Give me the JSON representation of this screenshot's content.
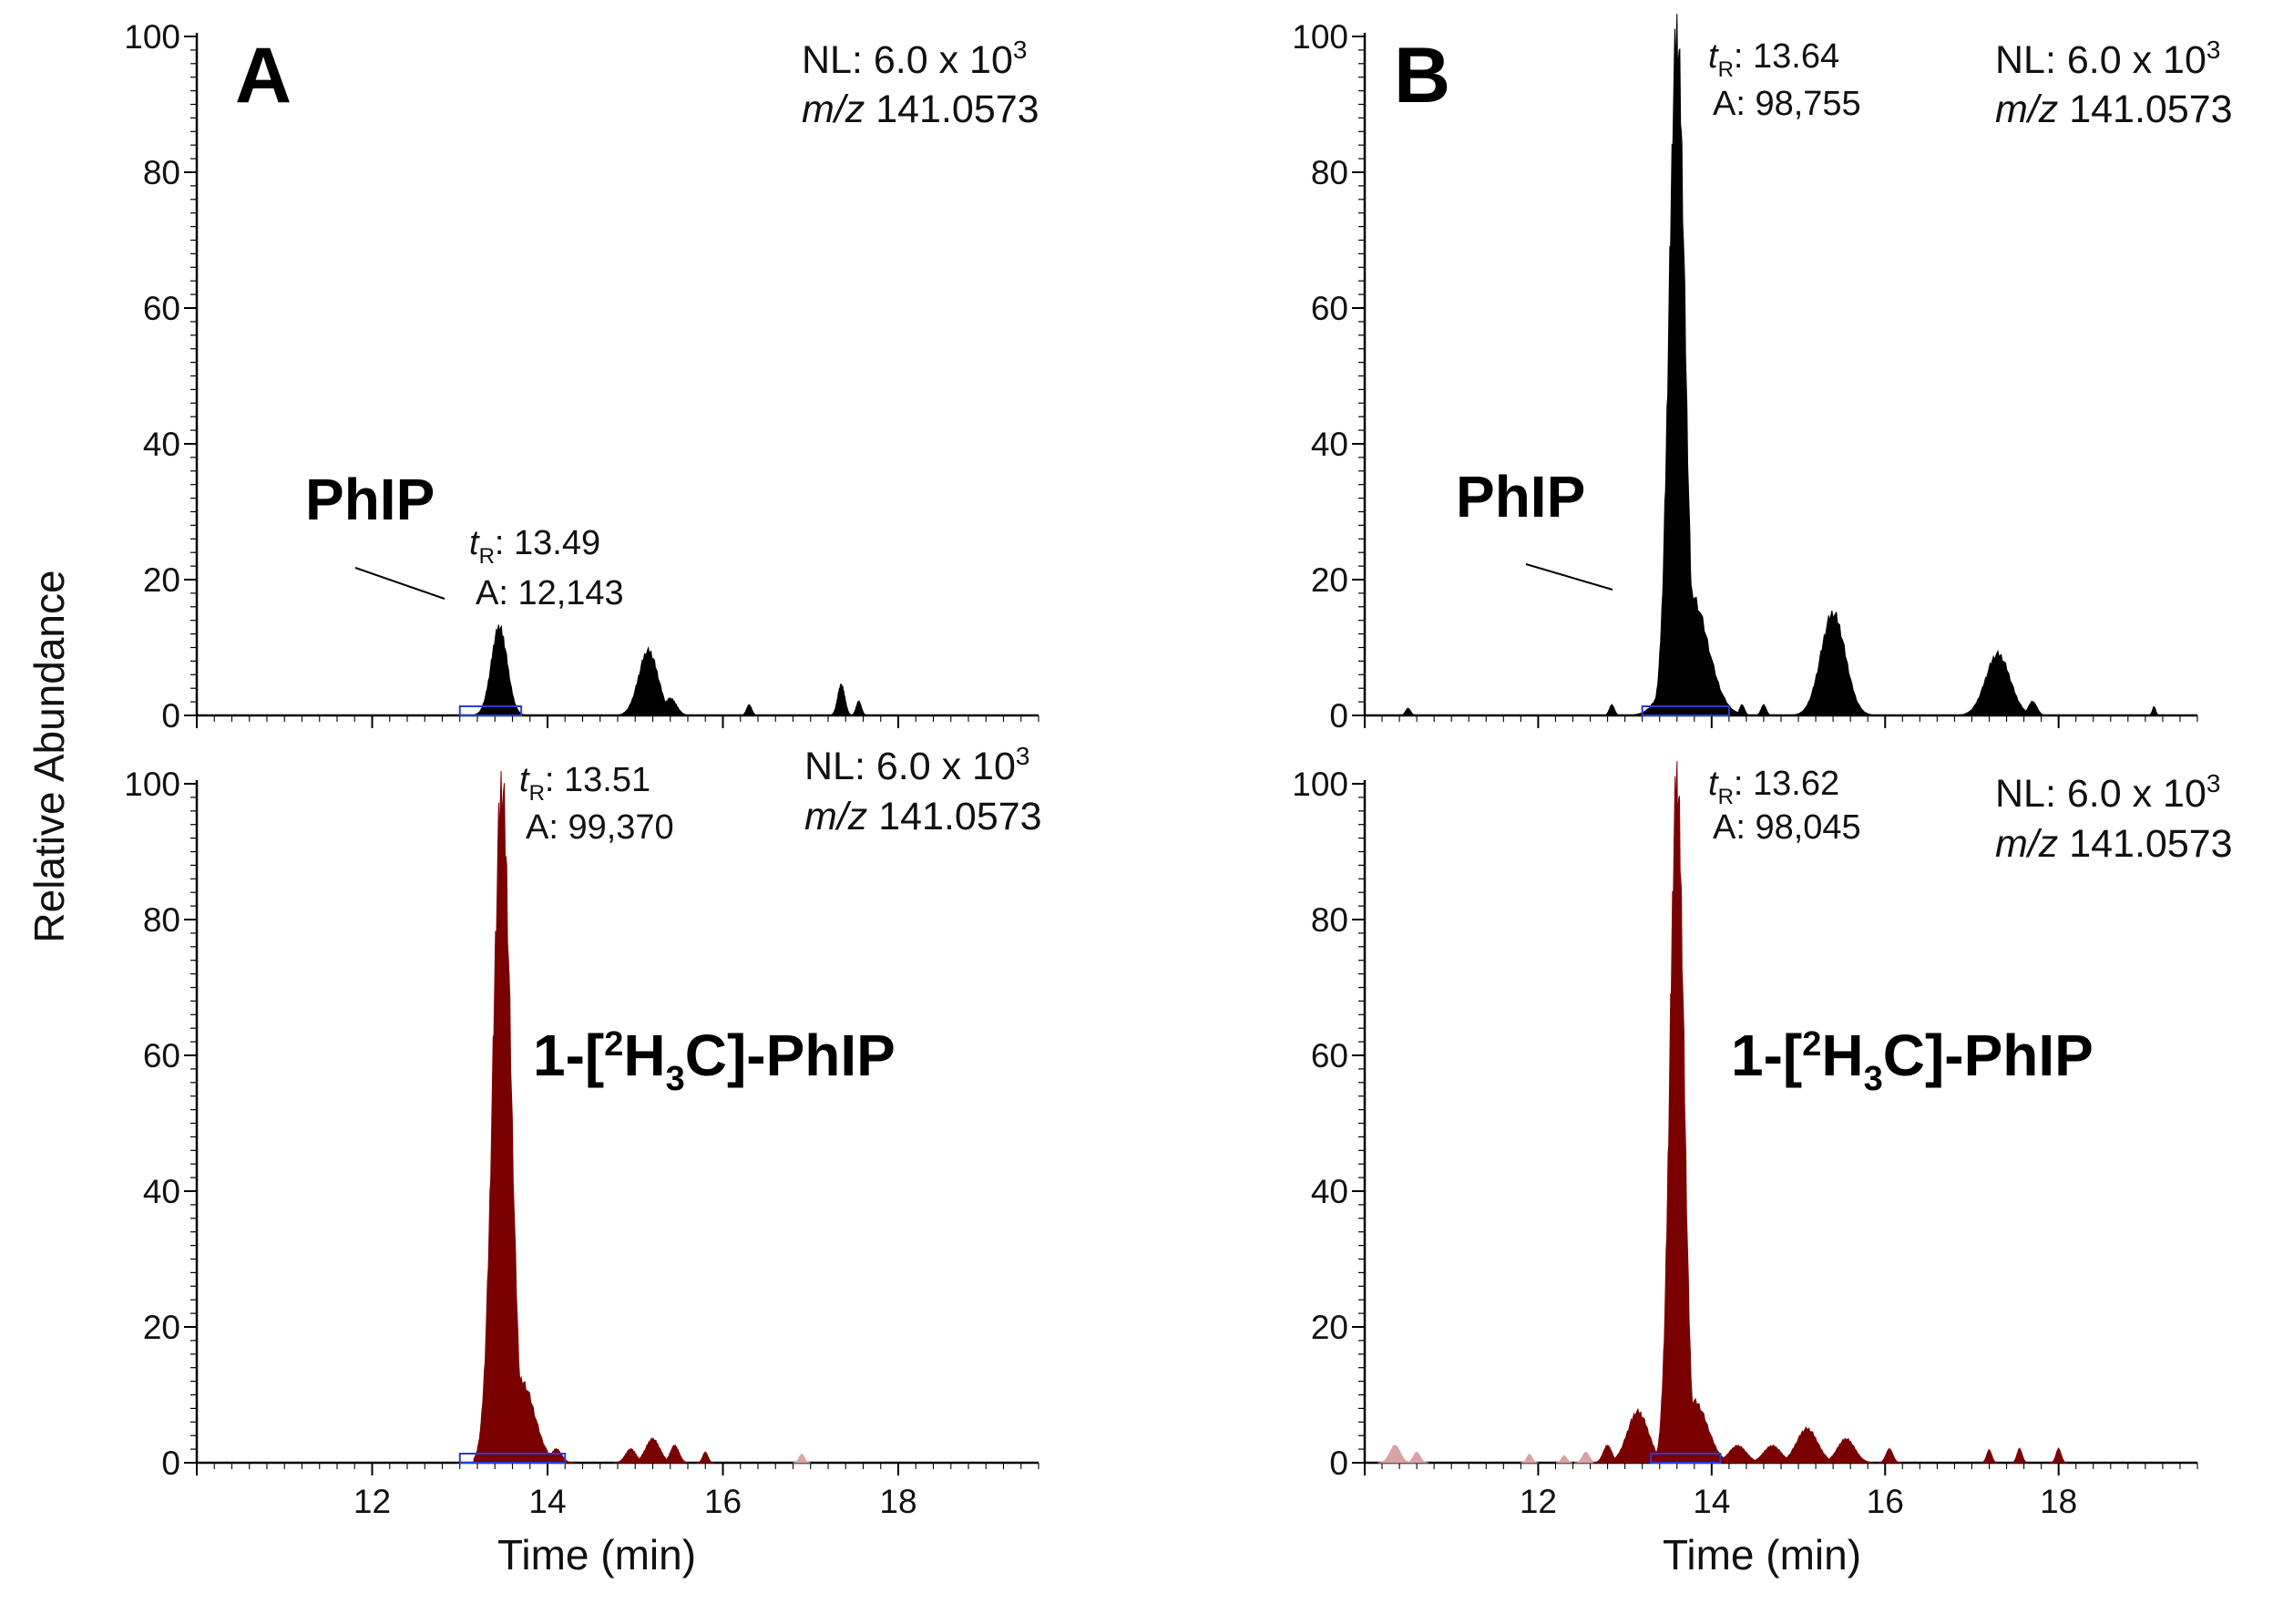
{
  "figure": {
    "ylabel": "Relative Abundance",
    "xlabel": "Time (min)",
    "xticks": [
      12,
      14,
      16,
      18
    ],
    "yticks": [
      0,
      20,
      40,
      60,
      80,
      100
    ],
    "colors": {
      "black_trace": "#000000",
      "red_trace": "#7a0000",
      "faint_red": "#d9a3a3",
      "baseline_marker": "#2b3bd6"
    }
  },
  "chart_data": [
    {
      "id": "A-top",
      "panel": "A",
      "type": "area",
      "color": "#000000",
      "title": "A",
      "nl_label": "NL: 6.0 x 10",
      "nl_exp": "3",
      "mz_italic": "m/z",
      "mz_value": "141.0573",
      "xlim": [
        10.0,
        19.6
      ],
      "ylim": [
        0,
        100
      ],
      "tr_t": "t",
      "tr_sub": "R",
      "tr_value": ": 13.49",
      "area_label": "A: 12,143",
      "compound": "PhIP",
      "baseline_window": [
        13.0,
        13.7
      ],
      "peaks": [
        {
          "rt": 13.45,
          "height": 13,
          "width": 0.09
        },
        {
          "rt": 15.15,
          "height": 9.5,
          "width": 0.11
        },
        {
          "rt": 15.4,
          "height": 2.5,
          "width": 0.07
        },
        {
          "rt": 16.3,
          "height": 1.5,
          "width": 0.03
        },
        {
          "rt": 17.35,
          "height": 4.5,
          "width": 0.04
        },
        {
          "rt": 17.55,
          "height": 2,
          "width": 0.03
        }
      ]
    },
    {
      "id": "A-bottom",
      "panel": "A",
      "type": "area",
      "color": "#7a0000",
      "nl_label": "NL: 6.0 x 10",
      "nl_exp": "3",
      "mz_italic": "m/z",
      "mz_value": "141.0573",
      "xlim": [
        10.0,
        19.6
      ],
      "ylim": [
        0,
        100
      ],
      "tr_t": "t",
      "tr_sub": "R",
      "tr_value": ": 13.51",
      "area_label": "A: 99,370",
      "compound_prefix": "1-[",
      "compound_sup": "2",
      "compound_h": "H",
      "compound_sub": "3",
      "compound_suffix": "C]-PhIP",
      "baseline_window": [
        13.0,
        14.2
      ],
      "peaks": [
        {
          "rt": 13.48,
          "height": 99,
          "width": 0.1
        },
        {
          "rt": 13.7,
          "height": 12,
          "width": 0.15
        },
        {
          "rt": 14.1,
          "height": 2,
          "width": 0.06
        },
        {
          "rt": 14.95,
          "height": 2,
          "width": 0.06
        },
        {
          "rt": 15.2,
          "height": 3.5,
          "width": 0.08
        },
        {
          "rt": 15.45,
          "height": 2.5,
          "width": 0.05
        },
        {
          "rt": 15.8,
          "height": 1.5,
          "width": 0.03
        }
      ],
      "faint_peaks": [
        {
          "rt": 16.9,
          "height": 1.2,
          "width": 0.03
        }
      ]
    },
    {
      "id": "B-top",
      "panel": "B",
      "type": "area",
      "color": "#000000",
      "title": "B",
      "nl_label": "NL: 6.0 x 10",
      "nl_exp": "3",
      "mz_italic": "m/z",
      "mz_value": "141.0573",
      "xlim": [
        10.0,
        19.6
      ],
      "ylim": [
        0,
        100
      ],
      "tr_t": "t",
      "tr_sub": "R",
      "tr_value": ": 13.64",
      "area_label": "A: 98,755",
      "compound": "PhIP",
      "baseline_window": [
        13.2,
        14.2
      ],
      "peaks": [
        {
          "rt": 10.5,
          "height": 1,
          "width": 0.03
        },
        {
          "rt": 12.85,
          "height": 1.5,
          "width": 0.03
        },
        {
          "rt": 13.6,
          "height": 100,
          "width": 0.09
        },
        {
          "rt": 13.75,
          "height": 18,
          "width": 0.2
        },
        {
          "rt": 14.0,
          "height": 5,
          "width": 0.1
        },
        {
          "rt": 14.35,
          "height": 1.5,
          "width": 0.03
        },
        {
          "rt": 14.6,
          "height": 1.5,
          "width": 0.03
        },
        {
          "rt": 15.4,
          "height": 15,
          "width": 0.14
        },
        {
          "rt": 17.3,
          "height": 9,
          "width": 0.14
        },
        {
          "rt": 17.7,
          "height": 2,
          "width": 0.05
        },
        {
          "rt": 19.1,
          "height": 1.2,
          "width": 0.02
        }
      ]
    },
    {
      "id": "B-bottom",
      "panel": "B",
      "type": "area",
      "color": "#7a0000",
      "nl_label": "NL: 6.0 x 10",
      "nl_exp": "3",
      "mz_italic": "m/z",
      "mz_value": "141.0573",
      "xlim": [
        10.0,
        19.6
      ],
      "ylim": [
        0,
        100
      ],
      "tr_t": "t",
      "tr_sub": "R",
      "tr_value": ": 13.62",
      "area_label": "A: 98,045",
      "compound_prefix": "1-[",
      "compound_sup": "2",
      "compound_h": "H",
      "compound_sub": "3",
      "compound_suffix": "C]-PhIP",
      "baseline_window": [
        13.3,
        14.1
      ],
      "peaks": [
        {
          "rt": 12.8,
          "height": 2.5,
          "width": 0.05
        },
        {
          "rt": 13.15,
          "height": 7.5,
          "width": 0.12
        },
        {
          "rt": 13.6,
          "height": 100,
          "width": 0.08
        },
        {
          "rt": 13.8,
          "height": 9,
          "width": 0.15
        },
        {
          "rt": 14.3,
          "height": 2.5,
          "width": 0.1
        },
        {
          "rt": 14.7,
          "height": 2.5,
          "width": 0.1
        },
        {
          "rt": 15.1,
          "height": 5,
          "width": 0.12
        },
        {
          "rt": 15.55,
          "height": 3.5,
          "width": 0.1
        },
        {
          "rt": 16.05,
          "height": 2,
          "width": 0.04
        },
        {
          "rt": 17.2,
          "height": 1.8,
          "width": 0.03
        },
        {
          "rt": 17.55,
          "height": 2,
          "width": 0.03
        },
        {
          "rt": 18.0,
          "height": 2,
          "width": 0.03
        }
      ],
      "faint_peaks": [
        {
          "rt": 10.35,
          "height": 2.5,
          "width": 0.06
        },
        {
          "rt": 10.6,
          "height": 1.5,
          "width": 0.04
        },
        {
          "rt": 11.9,
          "height": 1.2,
          "width": 0.03
        },
        {
          "rt": 12.3,
          "height": 1,
          "width": 0.03
        },
        {
          "rt": 12.55,
          "height": 1.5,
          "width": 0.04
        }
      ]
    }
  ]
}
